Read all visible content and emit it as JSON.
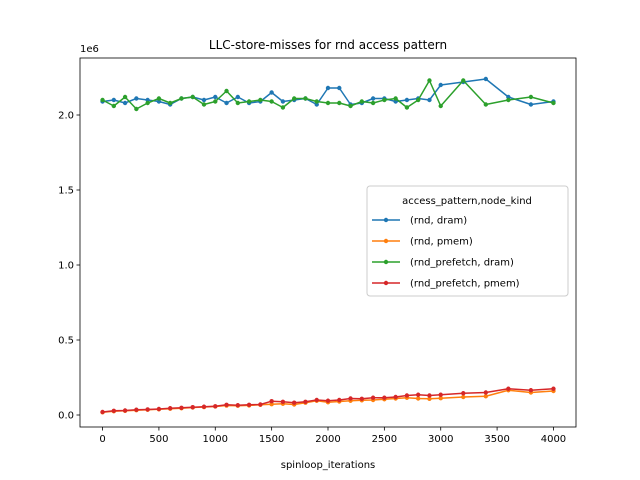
{
  "chart_data": {
    "type": "line",
    "title": "LLC-store-misses for rnd access pattern",
    "xlabel": "spinloop_iterations",
    "ylabel": "",
    "y_offset_label": "1e6",
    "xlim": [
      -200,
      4200
    ],
    "ylim": [
      -80000,
      2380000
    ],
    "x_ticks": [
      0,
      500,
      1000,
      1500,
      2000,
      2500,
      3000,
      3500,
      4000
    ],
    "x_tick_labels": [
      "0",
      "500",
      "1000",
      "1500",
      "2000",
      "2500",
      "3000",
      "3500",
      "4000"
    ],
    "y_ticks": [
      0,
      500000,
      1000000,
      1500000,
      2000000
    ],
    "y_tick_labels": [
      "0.0",
      "0.5",
      "1.0",
      "1.5",
      "2.0"
    ],
    "legend_title": "access_pattern,node_kind",
    "legend_position": "center-right",
    "grid": false,
    "series": [
      {
        "name": "(rnd, dram)",
        "color": "#1f77b4",
        "x": [
          0,
          100,
          200,
          300,
          400,
          500,
          600,
          700,
          800,
          900,
          1000,
          1100,
          1200,
          1300,
          1400,
          1500,
          1600,
          1700,
          1800,
          1900,
          2000,
          2100,
          2200,
          2300,
          2400,
          2500,
          2600,
          2700,
          2800,
          2900,
          3000,
          3200,
          3400,
          3600,
          3800,
          4000
        ],
        "y": [
          2090000,
          2100000,
          2080000,
          2110000,
          2100000,
          2090000,
          2070000,
          2110000,
          2120000,
          2100000,
          2120000,
          2080000,
          2120000,
          2080000,
          2090000,
          2150000,
          2090000,
          2100000,
          2110000,
          2070000,
          2180000,
          2180000,
          2070000,
          2080000,
          2110000,
          2110000,
          2090000,
          2100000,
          2110000,
          2100000,
          2200000,
          2220000,
          2240000,
          2120000,
          2070000,
          2090000
        ]
      },
      {
        "name": "(rnd, pmem)",
        "color": "#ff7f0e",
        "x": [
          0,
          100,
          200,
          300,
          400,
          500,
          600,
          700,
          800,
          900,
          1000,
          1100,
          1200,
          1300,
          1400,
          1500,
          1600,
          1700,
          1800,
          1900,
          2000,
          2100,
          2200,
          2300,
          2400,
          2500,
          2600,
          2700,
          2800,
          2900,
          3000,
          3200,
          3400,
          3600,
          3800,
          4000
        ],
        "y": [
          18000,
          25000,
          28000,
          32000,
          35000,
          38000,
          42000,
          45000,
          50000,
          53000,
          57000,
          63000,
          62000,
          64000,
          68000,
          72000,
          75000,
          70000,
          82000,
          95000,
          85000,
          90000,
          95000,
          98000,
          100000,
          105000,
          110000,
          115000,
          110000,
          108000,
          112000,
          120000,
          125000,
          165000,
          150000,
          160000
        ]
      },
      {
        "name": "(rnd_prefetch, dram)",
        "color": "#2ca02c",
        "x": [
          0,
          100,
          200,
          300,
          400,
          500,
          600,
          700,
          800,
          900,
          1000,
          1100,
          1200,
          1300,
          1400,
          1500,
          1600,
          1700,
          1800,
          1900,
          2000,
          2100,
          2200,
          2300,
          2400,
          2500,
          2600,
          2700,
          2800,
          2900,
          3000,
          3200,
          3400,
          3600,
          3800,
          4000
        ],
        "y": [
          2100000,
          2060000,
          2120000,
          2040000,
          2080000,
          2110000,
          2080000,
          2110000,
          2120000,
          2070000,
          2090000,
          2160000,
          2080000,
          2090000,
          2100000,
          2090000,
          2050000,
          2110000,
          2110000,
          2090000,
          2080000,
          2080000,
          2060000,
          2090000,
          2080000,
          2100000,
          2110000,
          2050000,
          2100000,
          2230000,
          2060000,
          2230000,
          2070000,
          2100000,
          2120000,
          2080000
        ]
      },
      {
        "name": "(rnd_prefetch, pmem)",
        "color": "#d62728",
        "x": [
          0,
          100,
          200,
          300,
          400,
          500,
          600,
          700,
          800,
          900,
          1000,
          1100,
          1200,
          1300,
          1400,
          1500,
          1600,
          1700,
          1800,
          1900,
          2000,
          2100,
          2200,
          2300,
          2400,
          2500,
          2600,
          2700,
          2800,
          2900,
          3000,
          3200,
          3400,
          3600,
          3800,
          4000
        ],
        "y": [
          20000,
          28000,
          30000,
          35000,
          37000,
          40000,
          45000,
          48000,
          52000,
          55000,
          58000,
          68000,
          65000,
          68000,
          70000,
          92000,
          88000,
          82000,
          88000,
          100000,
          95000,
          100000,
          110000,
          108000,
          115000,
          115000,
          120000,
          130000,
          135000,
          130000,
          135000,
          145000,
          150000,
          175000,
          165000,
          175000
        ]
      }
    ]
  }
}
